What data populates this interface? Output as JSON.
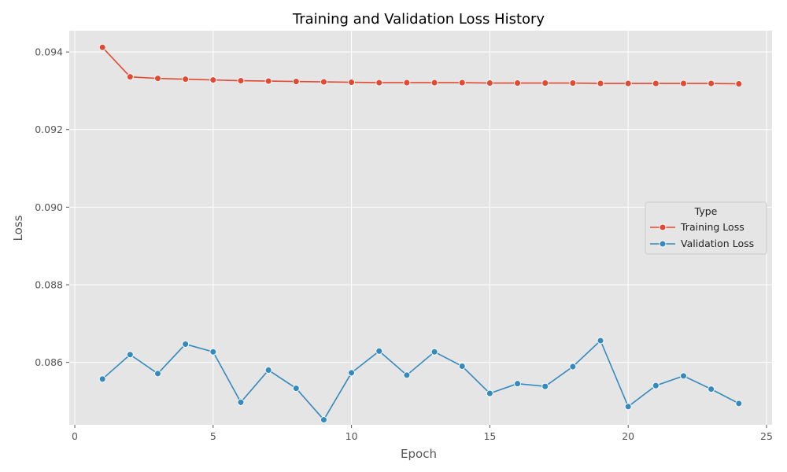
{
  "chart_data": {
    "type": "line",
    "title": "Training and Validation Loss History",
    "xlabel": "Epoch",
    "ylabel": "Loss",
    "xlim": [
      -0.2,
      25.2
    ],
    "ylim": [
      0.8439,
      0.09455
    ],
    "x_ticks": [
      0,
      5,
      10,
      15,
      20,
      25
    ],
    "y_ticks": [
      0.086,
      0.088,
      0.09,
      0.092,
      0.094
    ],
    "x_tick_labels": [
      "0",
      "5",
      "10",
      "15",
      "20",
      "25"
    ],
    "y_tick_labels": [
      "0.086",
      "0.088",
      "0.090",
      "0.092",
      "0.094"
    ],
    "grid": true,
    "legend": {
      "title": "Type",
      "placement": "center-right"
    },
    "x": [
      1,
      2,
      3,
      4,
      5,
      6,
      7,
      8,
      9,
      10,
      11,
      12,
      13,
      14,
      15,
      16,
      17,
      18,
      19,
      20,
      21,
      22,
      23,
      24
    ],
    "series": [
      {
        "name": "Training Loss",
        "color": "#E24A33",
        "values": [
          0.09412,
          0.09336,
          0.09332,
          0.0933,
          0.09328,
          0.09326,
          0.09325,
          0.09324,
          0.09323,
          0.09322,
          0.09321,
          0.09321,
          0.09321,
          0.09321,
          0.0932,
          0.0932,
          0.0932,
          0.0932,
          0.09319,
          0.09319,
          0.09319,
          0.09319,
          0.09319,
          0.09318
        ]
      },
      {
        "name": "Validation Loss",
        "color": "#348ABD",
        "values": [
          0.08557,
          0.0862,
          0.08571,
          0.08647,
          0.08627,
          0.08497,
          0.0858,
          0.08533,
          0.08452,
          0.08573,
          0.08629,
          0.08567,
          0.08627,
          0.0859,
          0.0852,
          0.08545,
          0.08538,
          0.08589,
          0.08656,
          0.08486,
          0.0854,
          0.08565,
          0.08531,
          0.08494
        ]
      }
    ]
  }
}
